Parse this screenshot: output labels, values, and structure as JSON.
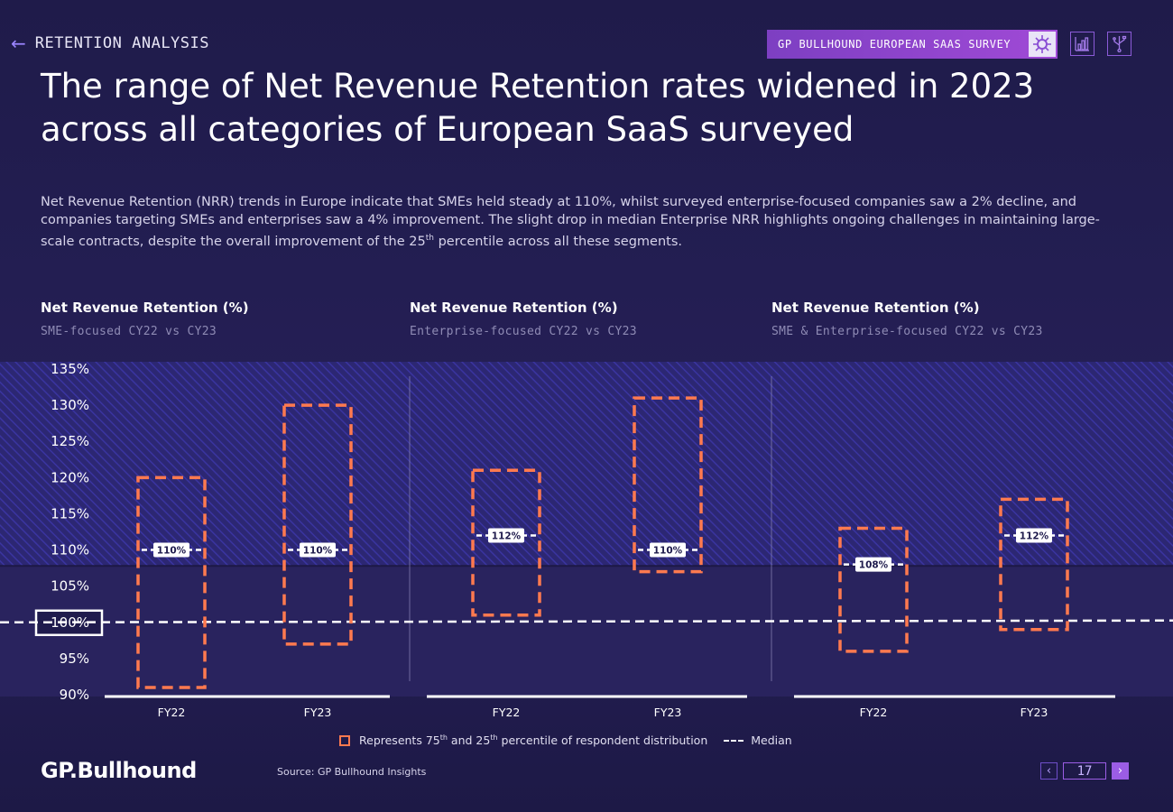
{
  "header": {
    "breadcrumb": "RETENTION ANALYSIS",
    "survey_label": "GP BULLHOUND EUROPEAN SAAS SURVEY",
    "icons": [
      "back-arrow-icon",
      "virus-icon",
      "bar-chart-icon",
      "usb-icon"
    ]
  },
  "title_lines": [
    "The range of Net Revenue Retention rates widened in 2023",
    "across all categories of European SaaS surveyed"
  ],
  "description": {
    "line1": "Net Revenue Retention (NRR) trends in Europe indicate that SMEs held steady at 110%, whilst surveyed enterprise-focused companies saw a 2% decline, and",
    "line2": "companies targeting SMEs and enterprises saw a 4% improvement. The slight drop in median Enterprise NRR highlights ongoing challenges in maintaining large-",
    "line3_pre": "scale contracts, despite the overall improvement of the 25",
    "line3_sup": "th",
    "line3_post": " percentile across all these segments."
  },
  "colors": {
    "box": "#ff7a4f",
    "median": "#ffffff",
    "background": "#1f1b4d",
    "hatch_band": "#2f2a7a",
    "accent": "#9b5de5"
  },
  "chart_data": {
    "type": "box",
    "ylim": [
      90,
      135
    ],
    "y_ticks": [
      "135%",
      "130%",
      "125%",
      "120%",
      "115%",
      "110%",
      "105%",
      "100%",
      "95%",
      "90%"
    ],
    "y_tick_values": [
      135,
      130,
      125,
      120,
      115,
      110,
      105,
      100,
      95,
      90
    ],
    "highlighted_tick": "100%",
    "reference_line": 100,
    "panels": [
      {
        "title": "Net Revenue Retention (%)",
        "subtitle": "SME-focused CY22 vs CY23",
        "boxes": [
          {
            "x": "FY22",
            "p25": 91,
            "p75": 120,
            "median": 110,
            "median_label": "110%"
          },
          {
            "x": "FY23",
            "p25": 97,
            "p75": 130,
            "median": 110,
            "median_label": "110%"
          }
        ]
      },
      {
        "title": "Net Revenue Retention (%)",
        "subtitle": "Enterprise-focused CY22 vs CY23",
        "boxes": [
          {
            "x": "FY22",
            "p25": 101,
            "p75": 121,
            "median": 112,
            "median_label": "112%"
          },
          {
            "x": "FY23",
            "p25": 107,
            "p75": 131,
            "median": 110,
            "median_label": "110%"
          }
        ]
      },
      {
        "title": "Net Revenue Retention (%)",
        "subtitle": "SME & Enterprise-focused CY22 vs CY23",
        "boxes": [
          {
            "x": "FY22",
            "p25": 96,
            "p75": 113,
            "median": 108,
            "median_label": "108%"
          },
          {
            "x": "FY23",
            "p25": 99,
            "p75": 117,
            "median": 112,
            "median_label": "112%"
          }
        ]
      }
    ]
  },
  "legend": {
    "box_pre": "Represents 75",
    "box_sup1": "th",
    "box_mid": " and 25",
    "box_sup2": "th",
    "box_post": " percentile of respondent distribution",
    "median_label": "Median"
  },
  "footer": {
    "logo": "GP.Bullhound",
    "source": "Source: GP Bullhound Insights",
    "page_number": "17",
    "prev_icon": "chevron-left-icon",
    "next_icon": "chevron-right-icon"
  }
}
